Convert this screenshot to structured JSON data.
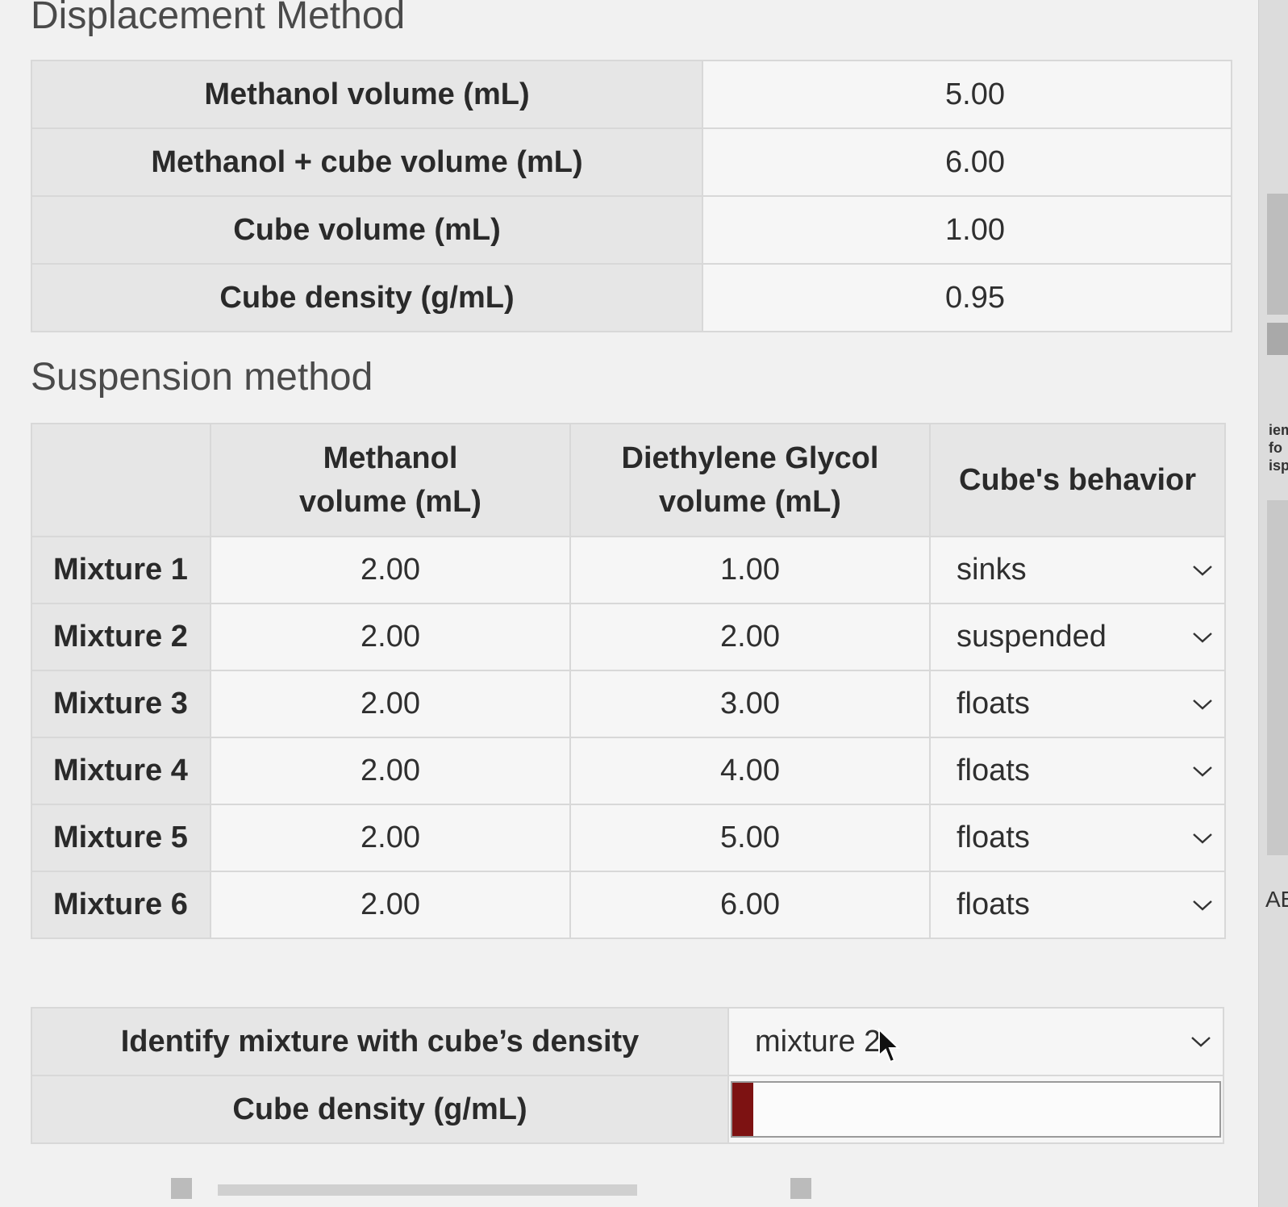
{
  "displacement": {
    "title": "Displacement Method",
    "rows": [
      {
        "label": "Methanol volume (mL)",
        "value": "5.00"
      },
      {
        "label": "Methanol + cube volume (mL)",
        "value": "6.00"
      },
      {
        "label": "Cube volume (mL)",
        "value": "1.00"
      },
      {
        "label": "Cube density (g/mL)",
        "value": "0.95"
      }
    ]
  },
  "suspension": {
    "title": "Suspension method",
    "headers": {
      "methanol_line1": "Methanol",
      "methanol_line2": "volume (mL)",
      "deg_line1": "Diethylene Glycol",
      "deg_line2": "volume (mL)",
      "behavior": "Cube's behavior"
    },
    "rows": [
      {
        "name": "Mixture 1",
        "methanol": "2.00",
        "deg": "1.00",
        "behavior": "sinks"
      },
      {
        "name": "Mixture 2",
        "methanol": "2.00",
        "deg": "2.00",
        "behavior": "suspended"
      },
      {
        "name": "Mixture 3",
        "methanol": "2.00",
        "deg": "3.00",
        "behavior": "floats"
      },
      {
        "name": "Mixture 4",
        "methanol": "2.00",
        "deg": "4.00",
        "behavior": "floats"
      },
      {
        "name": "Mixture 5",
        "methanol": "2.00",
        "deg": "5.00",
        "behavior": "floats"
      },
      {
        "name": "Mixture 6",
        "methanol": "2.00",
        "deg": "6.00",
        "behavior": "floats"
      }
    ]
  },
  "identify": {
    "label": "Identify mixture with cube’s density",
    "selected": "mixture 2"
  },
  "cube_density": {
    "label": "Cube density (g/mL)",
    "value": ""
  },
  "side_panel": {
    "text1": "iem",
    "text2": "fo",
    "text3": "isp",
    "text4": "AE"
  },
  "colors": {
    "accent_bar": "#7d1212"
  },
  "icons": {
    "dropdown": "chevron-down-icon",
    "cursor": "mouse-pointer-icon"
  }
}
